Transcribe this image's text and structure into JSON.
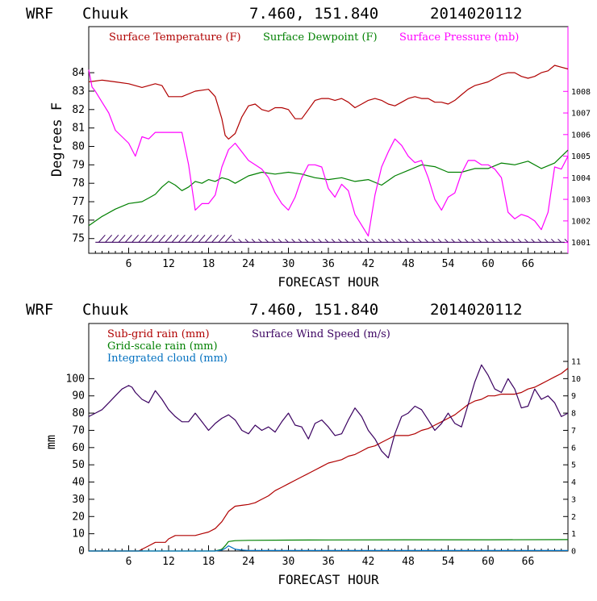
{
  "chart_data": [
    {
      "type": "line",
      "header": {
        "model": "WRF",
        "station": "Chuuk",
        "coords": "7.460, 151.840",
        "init": "2014020112"
      },
      "xlabel": "FORECAST HOUR",
      "ylabel": "Degrees F",
      "xlim": [
        0,
        72
      ],
      "ylim": [
        74.2,
        86.5
      ],
      "y2lim": [
        1000.5,
        1011
      ],
      "xticks": [
        6,
        12,
        18,
        24,
        30,
        36,
        42,
        48,
        54,
        60,
        66
      ],
      "xtick_labels": [
        "6",
        "12",
        "18",
        "24",
        "30",
        "36",
        "42",
        "48",
        "54",
        "60",
        "66"
      ],
      "yticks": [
        75,
        76,
        77,
        78,
        79,
        80,
        81,
        82,
        83,
        84
      ],
      "ytick_labels": [
        "75",
        "76",
        "77",
        "78",
        "79",
        "80",
        "81",
        "82",
        "83",
        "84"
      ],
      "y2ticks": [
        1001,
        1002,
        1003,
        1004,
        1005,
        1006,
        1007,
        1008
      ],
      "y2tick_labels": [
        "1001",
        "1002",
        "1003",
        "1004",
        "1005",
        "1006",
        "1007",
        "1008"
      ],
      "series": [
        {
          "name": "Surface Temperature (F)",
          "color": "#b00000",
          "axis": "left",
          "x": [
            0,
            2,
            4,
            6,
            8,
            10,
            11,
            12,
            14,
            16,
            18,
            19,
            20,
            20.5,
            21,
            22,
            23,
            24,
            25,
            26,
            27,
            28,
            29,
            30,
            31,
            32,
            33,
            34,
            35,
            36,
            37,
            38,
            39,
            40,
            41,
            42,
            43,
            44,
            45,
            46,
            47,
            48,
            49,
            50,
            51,
            52,
            53,
            54,
            55,
            56,
            57,
            58,
            59,
            60,
            61,
            62,
            63,
            64,
            65,
            66,
            67,
            68,
            69,
            70,
            71,
            72
          ],
          "y": [
            83.5,
            83.6,
            83.5,
            83.4,
            83.2,
            83.4,
            83.3,
            82.7,
            82.7,
            83.0,
            83.1,
            82.7,
            81.5,
            80.6,
            80.4,
            80.7,
            81.6,
            82.2,
            82.3,
            82.0,
            81.9,
            82.1,
            82.1,
            82.0,
            81.5,
            81.5,
            82.0,
            82.5,
            82.6,
            82.6,
            82.5,
            82.6,
            82.4,
            82.1,
            82.3,
            82.5,
            82.6,
            82.5,
            82.3,
            82.2,
            82.4,
            82.6,
            82.7,
            82.6,
            82.6,
            82.4,
            82.4,
            82.3,
            82.5,
            82.8,
            83.1,
            83.3,
            83.4,
            83.5,
            83.7,
            83.9,
            84.0,
            84.0,
            83.8,
            83.7,
            83.8,
            84.0,
            84.1,
            84.4,
            84.3,
            84.2
          ]
        },
        {
          "name": "Surface Dewpoint (F)",
          "color": "#008000",
          "axis": "left",
          "x": [
            0,
            2,
            4,
            6,
            8,
            9,
            10,
            11,
            12,
            13,
            14,
            15,
            16,
            17,
            18,
            19,
            20,
            21,
            22,
            24,
            26,
            28,
            30,
            32,
            34,
            36,
            38,
            40,
            42,
            44,
            46,
            48,
            50,
            52,
            54,
            56,
            58,
            60,
            62,
            64,
            66,
            68,
            70,
            72
          ],
          "y": [
            75.7,
            76.2,
            76.6,
            76.9,
            77.0,
            77.2,
            77.4,
            77.8,
            78.1,
            77.9,
            77.6,
            77.8,
            78.1,
            78.0,
            78.2,
            78.1,
            78.3,
            78.2,
            78.0,
            78.4,
            78.6,
            78.5,
            78.6,
            78.5,
            78.3,
            78.2,
            78.3,
            78.1,
            78.2,
            77.9,
            78.4,
            78.7,
            79.0,
            78.9,
            78.6,
            78.6,
            78.8,
            78.8,
            79.1,
            79.0,
            79.2,
            78.8,
            79.1,
            79.8
          ]
        },
        {
          "name": "Surface Pressure (mb)",
          "color": "#ff00ff",
          "axis": "right",
          "x": [
            0,
            0.5,
            1,
            2,
            3,
            4,
            5,
            6,
            7,
            8,
            9,
            10,
            11,
            12,
            13,
            14,
            15,
            16,
            17,
            18,
            19,
            20,
            21,
            22,
            23,
            24,
            25,
            26,
            27,
            28,
            29,
            30,
            31,
            32,
            33,
            34,
            35,
            36,
            37,
            38,
            39,
            40,
            41,
            42,
            43,
            44,
            45,
            46,
            47,
            48,
            49,
            50,
            51,
            52,
            53,
            54,
            55,
            56,
            57,
            58,
            59,
            60,
            61,
            62,
            63,
            64,
            65,
            66,
            67,
            68,
            69,
            70,
            71,
            72
          ],
          "y": [
            1009,
            1008.2,
            1008,
            1007.5,
            1007,
            1006.2,
            1005.9,
            1005.6,
            1005,
            1005.9,
            1005.8,
            1006.1,
            1006.1,
            1006.1,
            1006.1,
            1006.1,
            1004.6,
            1002.5,
            1002.8,
            1002.8,
            1003.2,
            1004.5,
            1005.3,
            1005.6,
            1005.2,
            1004.8,
            1004.6,
            1004.4,
            1004.0,
            1003.3,
            1002.8,
            1002.5,
            1003.1,
            1004.0,
            1004.6,
            1004.6,
            1004.5,
            1003.5,
            1003.1,
            1003.7,
            1003.4,
            1002.3,
            1001.8,
            1001.3,
            1003.2,
            1004.5,
            1005.2,
            1005.8,
            1005.5,
            1005.0,
            1004.7,
            1004.8,
            1004.0,
            1003.0,
            1002.5,
            1003.1,
            1003.3,
            1004.2,
            1004.8,
            1004.8,
            1004.6,
            1004.6,
            1004.4,
            1004.0,
            1002.4,
            1002.1,
            1002.3,
            1002.2,
            1002.0,
            1001.6,
            1002.4,
            1004.5,
            1004.4,
            1005.0
          ]
        }
      ],
      "wind_barbs": {
        "color": "#3a0060",
        "y_level": 74.8
      }
    },
    {
      "type": "line",
      "header": {
        "model": "WRF",
        "station": "Chuuk",
        "coords": "7.460, 151.840",
        "init": "2014020112"
      },
      "xlabel": "FORECAST HOUR",
      "ylabel": "mm",
      "xlim": [
        0,
        72
      ],
      "ylim": [
        0,
        132
      ],
      "y2lim": [
        0,
        13.2
      ],
      "xticks": [
        6,
        12,
        18,
        24,
        30,
        36,
        42,
        48,
        54,
        60,
        66
      ],
      "xtick_labels": [
        "6",
        "12",
        "18",
        "24",
        "30",
        "36",
        "42",
        "48",
        "54",
        "60",
        "66"
      ],
      "yticks": [
        0,
        10,
        20,
        30,
        40,
        50,
        60,
        70,
        80,
        90,
        100
      ],
      "ytick_labels": [
        "0",
        "10",
        "20",
        "30",
        "40",
        "50",
        "60",
        "70",
        "80",
        "90",
        "100"
      ],
      "y2ticks": [
        0,
        1,
        2,
        3,
        4,
        5,
        6,
        7,
        8,
        9,
        10,
        11
      ],
      "y2tick_labels": [
        "0",
        "1",
        "2",
        "3",
        "4",
        "5",
        "6",
        "7",
        "8",
        "9",
        "10",
        "11"
      ],
      "series": [
        {
          "name": "Sub-grid rain (mm)",
          "color": "#b00000",
          "axis": "left",
          "x": [
            0,
            7.5,
            8,
            9,
            10,
            10.5,
            11,
            11.5,
            12,
            13,
            14,
            15,
            16,
            17,
            18,
            19,
            20,
            21,
            22,
            23,
            24,
            25,
            26,
            27,
            28,
            29,
            30,
            31,
            32,
            33,
            34,
            35,
            36,
            37,
            38,
            39,
            40,
            41,
            42,
            43,
            44,
            45,
            46,
            47,
            48,
            49,
            50,
            51,
            52,
            53,
            54,
            55,
            56,
            57,
            58,
            59,
            60,
            61,
            62,
            63,
            64,
            65,
            66,
            67,
            68,
            69,
            70,
            71,
            72
          ],
          "y": [
            0,
            0,
            1,
            3,
            5,
            5,
            5,
            5,
            7,
            9,
            9,
            9,
            9,
            10,
            11,
            13,
            17,
            23,
            26,
            26.5,
            27,
            28,
            30,
            32,
            35,
            37,
            39,
            41,
            43,
            45,
            47,
            49,
            51,
            52,
            53,
            55,
            56,
            58,
            60,
            61,
            63,
            65,
            67,
            67,
            67,
            68,
            70,
            71,
            73,
            75,
            77,
            79,
            82,
            85,
            87,
            88,
            90,
            90,
            91,
            91,
            91,
            92,
            94,
            95,
            97,
            99,
            101,
            103,
            106
          ]
        },
        {
          "name": "Grid-scale rain (mm)",
          "color": "#008000",
          "axis": "left",
          "x": [
            0,
            19,
            20,
            20.5,
            21,
            22,
            24,
            30,
            36,
            48,
            60,
            72
          ],
          "y": [
            0,
            0,
            1,
            3,
            5.5,
            6,
            6.2,
            6.3,
            6.4,
            6.5,
            6.5,
            6.6
          ]
        },
        {
          "name": "Integrated cloud (mm)",
          "color": "#0070c0",
          "axis": "left",
          "x": [
            0,
            19,
            20,
            20.5,
            21,
            21.5,
            22,
            23,
            24,
            30,
            36,
            48,
            60,
            72
          ],
          "y": [
            0,
            0,
            0.5,
            1.5,
            3,
            2,
            1,
            0.5,
            0.3,
            0.3,
            0.3,
            0.3,
            0.3,
            0.3
          ]
        },
        {
          "name": "Surface Wind Speed (m/s)",
          "color": "#3a0060",
          "axis": "right",
          "x": [
            0,
            1,
            2,
            3,
            4,
            5,
            6,
            6.5,
            7,
            8,
            9,
            10,
            11,
            12,
            13,
            14,
            15,
            16,
            17,
            18,
            19,
            20,
            21,
            22,
            23,
            24,
            25,
            26,
            27,
            28,
            29,
            30,
            31,
            32,
            33,
            34,
            35,
            36,
            37,
            38,
            39,
            40,
            41,
            42,
            43,
            44,
            45,
            46,
            47,
            48,
            49,
            50,
            51,
            52,
            53,
            54,
            55,
            56,
            57,
            58,
            59,
            60,
            61,
            62,
            63,
            64,
            65,
            66,
            67,
            68,
            69,
            70,
            71,
            72
          ],
          "y": [
            7.8,
            8.0,
            8.2,
            8.6,
            9.0,
            9.4,
            9.6,
            9.5,
            9.2,
            8.8,
            8.6,
            9.3,
            8.8,
            8.2,
            7.8,
            7.5,
            7.5,
            8.0,
            7.5,
            7.0,
            7.4,
            7.7,
            7.9,
            7.6,
            7.0,
            6.8,
            7.3,
            7.0,
            7.2,
            6.9,
            7.5,
            8.0,
            7.3,
            7.2,
            6.5,
            7.4,
            7.6,
            7.2,
            6.7,
            6.8,
            7.6,
            8.3,
            7.8,
            7.0,
            6.5,
            5.8,
            5.4,
            6.8,
            7.8,
            8.0,
            8.4,
            8.2,
            7.6,
            7.0,
            7.4,
            8.0,
            7.4,
            7.2,
            8.5,
            9.8,
            10.8,
            10.2,
            9.4,
            9.2,
            10.0,
            9.4,
            8.3,
            8.4,
            9.4,
            8.8,
            9.0,
            8.6,
            7.8,
            8.0
          ]
        }
      ]
    }
  ]
}
